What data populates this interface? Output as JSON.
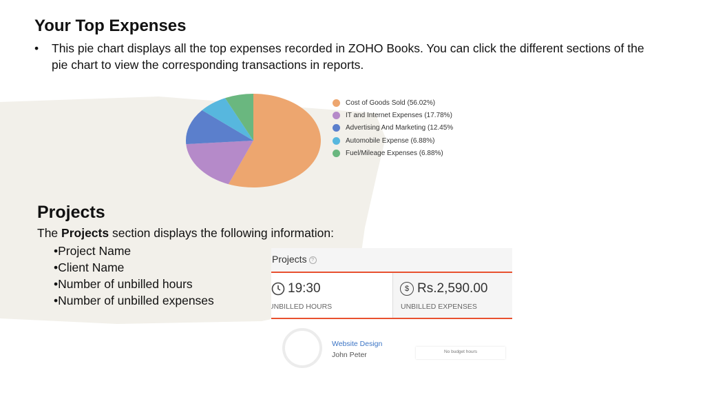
{
  "section1": {
    "title": "Your Top Expenses",
    "bullet_marker": "•",
    "bullet_text": "This pie chart displays all the top expenses recorded in ZOHO Books. You can click the different sections of the pie chart to view the corresponding transactions in reports."
  },
  "chart_data": {
    "type": "pie",
    "slices": [
      {
        "label": "Cost of Goods Sold (56.02%)",
        "value": 56.02,
        "color": "#eda66f"
      },
      {
        "label": "IT and Internet Expenses (17.78%)",
        "value": 17.78,
        "color": "#b58ac9"
      },
      {
        "label": "Advertising And Marketing (12.45%",
        "value": 12.45,
        "color": "#5b7fcc"
      },
      {
        "label": "Automobile Expense (6.88%)",
        "value": 6.88,
        "color": "#57b7de"
      },
      {
        "label": "Fuel/Mileage Expenses (6.88%)",
        "value": 6.88,
        "color": "#6ab77f"
      }
    ]
  },
  "section2": {
    "title": "Projects",
    "intro_prefix": "The ",
    "intro_bold": "Projects",
    "intro_suffix": " section displays the following information:",
    "items": [
      "•Project Name",
      "•Client Name",
      "•Number of unbilled hours",
      "•Number of unbilled expenses"
    ]
  },
  "projects_widget": {
    "title": "Projects",
    "help_icon": "?",
    "hours_value": "19:30",
    "hours_label": "UNBILLED HOURS",
    "expenses_value": "Rs.2,590.00",
    "expenses_label": "UNBILLED EXPENSES",
    "dollar_icon": "$",
    "project_name": "Website Design",
    "client_name": "John Peter",
    "budget_text": "No budget hours"
  }
}
